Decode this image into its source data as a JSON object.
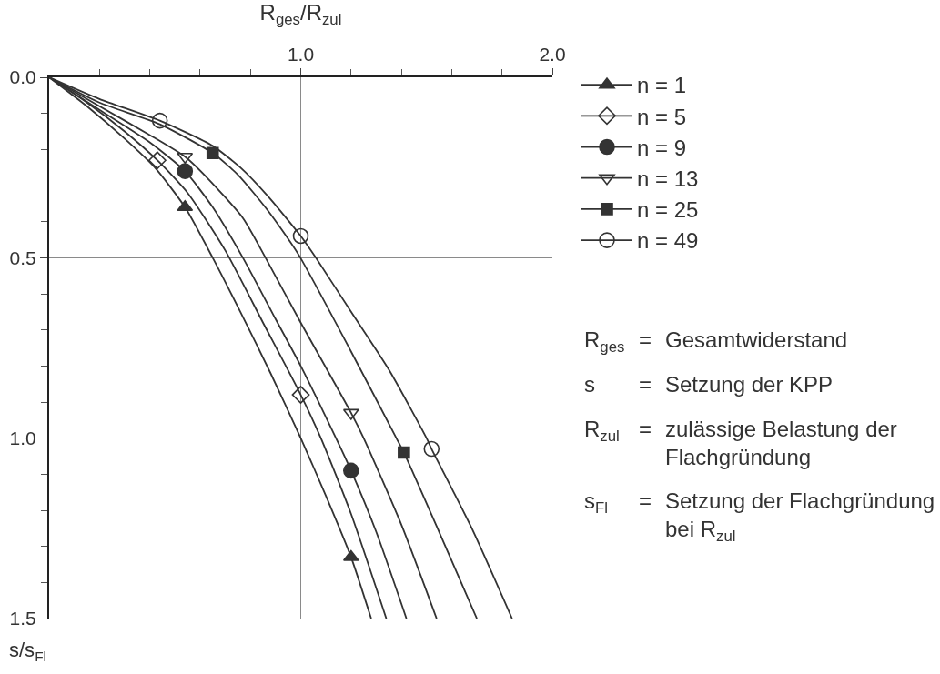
{
  "chart_data": {
    "type": "line",
    "xlabel": "R$_{ges}$/R$_{zul}$",
    "ylabel": "s/s$_{Fl}$",
    "xlim": [
      0,
      2
    ],
    "xticks": [
      {
        "value": 0.2,
        "label": null
      },
      {
        "value": 0.4,
        "label": null
      },
      {
        "value": 0.6,
        "label": null
      },
      {
        "value": 0.8,
        "label": null
      },
      {
        "value": 1,
        "label": "1.0"
      },
      {
        "value": 1.2,
        "label": null
      },
      {
        "value": 1.4,
        "label": null
      },
      {
        "value": 1.6,
        "label": null
      },
      {
        "value": 1.8,
        "label": null
      },
      {
        "value": 2,
        "label": "2.0"
      }
    ],
    "ylim": [
      1.5,
      0
    ],
    "yticks": [
      {
        "value": 0,
        "label": "0.0"
      },
      {
        "value": 0.1,
        "label": null
      },
      {
        "value": 0.2,
        "label": null
      },
      {
        "value": 0.3,
        "label": null
      },
      {
        "value": 0.4,
        "label": null
      },
      0.5,
      {
        "value": 0.6,
        "label": null
      },
      {
        "value": 0.7,
        "label": null
      },
      {
        "value": 0.8,
        "label": null
      },
      {
        "value": 0.9,
        "label": null
      },
      {
        "value": 1,
        "label": "1.0"
      },
      {
        "value": 1.1,
        "label": null
      },
      {
        "value": 1.2,
        "label": null
      },
      {
        "value": 1.3,
        "label": null
      },
      {
        "value": 1.4,
        "label": null
      },
      1.5
    ],
    "grid": true,
    "legend": "top right",
    "line_style": "solid",
    "annotations": [
      "R$_{ges}$ = Gesamtwiderstand",
      "s = Setzung der KPP",
      "R$_{zul}$ = zulässige Belastung der\nFlachgründung",
      "s$_{Fl}$ = Setzung der Flachgründung\nbei R$_{zul}$"
    ],
    "series": [
      {
        "color": "#333333",
        "x": [
          0,
          0.15,
          0.3,
          0.42,
          0.54,
          0.65,
          0.76,
          0.88,
          1.0,
          1.1,
          1.2,
          1.28
        ],
        "values": [
          0,
          0.08,
          0.17,
          0.25,
          0.36,
          0.5,
          0.65,
          0.82,
          1.0,
          1.16,
          1.33,
          1.5
        ]
      },
      {
        "name": "n = 1",
        "type": "scatter",
        "color": "#333333",
        "marker": "triangle",
        "x": [
          0.54,
          1.2
        ],
        "values": [
          0.36,
          1.33
        ]
      },
      {
        "color": "#333333",
        "x": [
          0,
          0.15,
          0.3,
          0.43,
          0.55,
          0.7,
          0.85,
          1.0,
          1.08,
          1.2,
          1.34
        ],
        "values": [
          0,
          0.07,
          0.15,
          0.23,
          0.32,
          0.48,
          0.68,
          0.88,
          1.0,
          1.21,
          1.5
        ]
      },
      {
        "name": "n = 5",
        "type": "scatter",
        "color": "#333333",
        "marker": "diamond-open",
        "x": [
          0.43,
          1.0
        ],
        "values": [
          0.23,
          0.88
        ]
      },
      {
        "color": "#333333",
        "x": [
          0,
          0.2,
          0.4,
          0.54,
          0.65,
          0.77,
          0.9,
          1.0,
          1.14,
          1.2,
          1.3,
          1.42
        ],
        "values": [
          0,
          0.09,
          0.18,
          0.26,
          0.36,
          0.5,
          0.67,
          0.8,
          1.0,
          1.09,
          1.26,
          1.5
        ]
      },
      {
        "name": "n = 9",
        "type": "scatter",
        "color": "#333333",
        "marker": "circle",
        "x": [
          0.54,
          1.2
        ],
        "values": [
          0.26,
          1.09
        ]
      },
      {
        "color": "#333333",
        "x": [
          0,
          0.2,
          0.4,
          0.54,
          0.63,
          0.77,
          0.86,
          1.0,
          1.2,
          1.25,
          1.4,
          1.54
        ],
        "values": [
          0,
          0.08,
          0.16,
          0.22,
          0.28,
          0.39,
          0.5,
          0.68,
          0.93,
          1.0,
          1.24,
          1.5
        ]
      },
      {
        "name": "n = 13",
        "type": "scatter",
        "color": "#333333",
        "marker": "triangle-down-open",
        "x": [
          0.54,
          1.2
        ],
        "values": [
          0.22,
          0.93
        ]
      },
      {
        "color": "#333333",
        "x": [
          0,
          0.2,
          0.44,
          0.65,
          0.75,
          0.87,
          0.99,
          1.2,
          1.38,
          1.41,
          1.55,
          1.7
        ],
        "values": [
          0,
          0.07,
          0.13,
          0.21,
          0.27,
          0.37,
          0.49,
          0.76,
          1.0,
          1.04,
          1.26,
          1.5
        ]
      },
      {
        "name": "n = 25",
        "type": "scatter",
        "color": "#333333",
        "marker": "square",
        "x": [
          0.65,
          1.41
        ],
        "values": [
          0.21,
          1.04
        ]
      },
      {
        "color": "#333333",
        "x": [
          0,
          0.2,
          0.44,
          0.65,
          0.76,
          0.87,
          1.0,
          1.06,
          1.2,
          1.35,
          1.5,
          1.52,
          1.68,
          1.84
        ],
        "values": [
          0,
          0.06,
          0.12,
          0.19,
          0.25,
          0.33,
          0.44,
          0.5,
          0.65,
          0.81,
          1.0,
          1.03,
          1.25,
          1.5
        ]
      },
      {
        "name": "n = 49",
        "type": "scatter",
        "color": "#333333",
        "marker": "circle-open",
        "x": [
          0.44,
          1.0,
          1.52
        ],
        "values": [
          0.12,
          0.44,
          1.03
        ]
      }
    ]
  }
}
